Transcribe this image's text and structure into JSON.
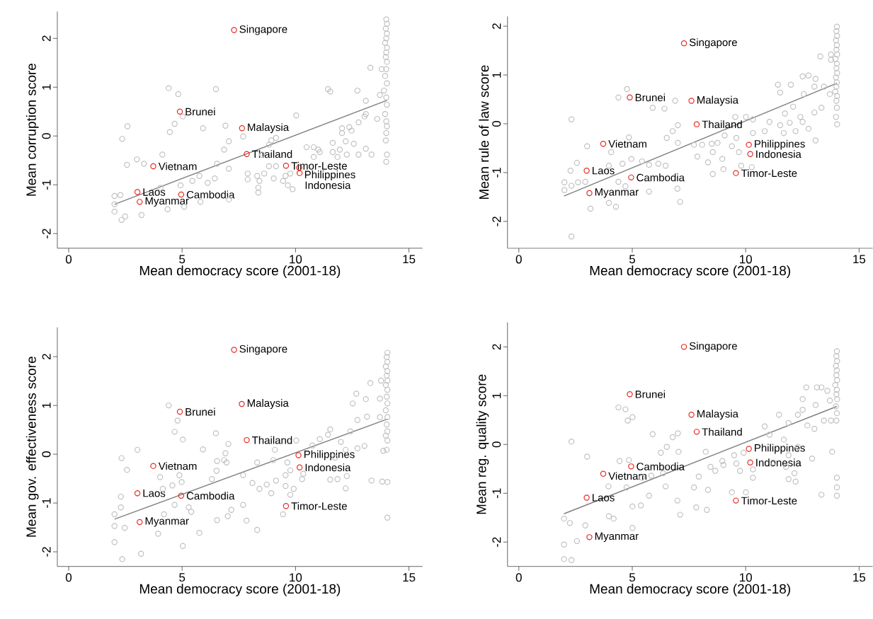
{
  "chart_data": [
    {
      "type": "scatter",
      "xlabel": "Mean democracy score (2001-18)",
      "ylabel": "Mean corruption score",
      "xlim": [
        -0.5,
        15.6
      ],
      "ylim": [
        -2.3,
        2.55
      ],
      "xticks": [
        0,
        5,
        10,
        15
      ],
      "yticks": [
        -2,
        -1,
        0,
        1,
        2
      ],
      "marker": "circle",
      "series": [
        {
          "type": "scatter",
          "color": "#c0c0c0",
          "x": [
            14.0,
            14.03,
            13.98,
            14.03,
            14.0,
            13.95,
            14.03,
            14.0,
            13.98,
            14.03,
            14.0,
            13.95,
            14.03,
            13.9,
            14.0,
            14.03,
            13.95,
            14.0,
            14.03,
            14.0,
            13.98,
            14.03,
            14.0,
            13.3,
            13.8,
            13.72,
            13.1,
            13.6,
            12.73,
            11.43,
            11.53,
            13.1,
            13.04,
            12.78,
            12.37,
            12.05,
            12.47,
            12.05,
            11.64,
            12.21,
            12.57,
            11.95,
            12.78,
            13.1,
            13.35,
            11.85,
            11.64,
            11.0,
            10.8,
            10.49,
            10.8,
            10.03,
            11.07,
            12.26,
            8.93,
            9.14,
            8.83,
            8.52,
            8.83,
            9.14,
            8.62,
            8.31,
            7.89,
            8.41,
            9.04,
            9.45,
            9.66,
            9.87,
            8.36,
            8.36,
            7.89,
            9.56,
            9.77,
            7.69,
            7.06,
            6.85,
            7.06,
            6.49,
            5.92,
            6.91,
            4.41,
            4.83,
            4.67,
            4.46,
            5.03,
            2.59,
            2.36,
            4.13,
            3.01,
            2.57,
            3.32,
            6.54,
            6.44,
            6.13,
            5.45,
            5.76,
            4.93,
            4.05,
            4.36,
            5.09,
            5.81,
            7.06,
            2.02,
            2.02,
            2.02,
            2.28,
            2.49,
            2.33,
            3.21
          ],
          "values": [
            2.39,
            2.3,
            2.2,
            2.1,
            2.0,
            1.91,
            1.81,
            1.71,
            1.62,
            1.52,
            1.37,
            1.23,
            1.08,
            0.93,
            0.79,
            0.64,
            0.45,
            0.3,
            0.2,
            0.06,
            -0.09,
            -0.38,
            -0.53,
            1.4,
            1.37,
            0.84,
            0.72,
            0.35,
            0.93,
            0.96,
            0.91,
            0.45,
            0.4,
            0.28,
            0.18,
            0.16,
            0.11,
            0.06,
            -0.14,
            -0.11,
            -0.16,
            -0.28,
            -0.38,
            -0.26,
            -0.38,
            -0.43,
            -0.33,
            -0.28,
            -0.43,
            -0.23,
            -0.23,
            0.42,
            -0.33,
            -0.38,
            -0.09,
            -0.04,
            -0.18,
            -0.38,
            -0.62,
            -0.62,
            -0.77,
            -0.82,
            -0.77,
            -0.92,
            -0.87,
            -0.92,
            -1.01,
            -1.09,
            -1.06,
            -1.16,
            -0.89,
            -0.82,
            -0.77,
            -0.01,
            -0.11,
            -0.28,
            -0.67,
            0.96,
            0.16,
            0.21,
            0.98,
            0.86,
            0.25,
            0.08,
            0.4,
            0.2,
            -0.06,
            -0.38,
            -0.48,
            -0.59,
            -0.57,
            -0.57,
            -0.87,
            -0.96,
            -0.92,
            -0.82,
            -1.01,
            -1.06,
            -1.5,
            -1.45,
            -1.35,
            -1.3,
            -1.23,
            -1.4,
            -1.55,
            -1.21,
            -1.65,
            -1.72,
            -1.62
          ]
        },
        {
          "type": "line",
          "marker": "none",
          "color": "#7f7f7f",
          "x": [
            2.02,
            14.03
          ],
          "values": [
            -1.4,
            0.73
          ]
        },
        {
          "type": "scatter",
          "color": "#e8281e",
          "x": [
            7.29,
            4.9,
            7.64,
            7.85,
            3.73,
            3.03,
            4.96,
            3.13,
            9.58,
            10.16,
            10.18
          ],
          "values": [
            2.17,
            0.5,
            0.16,
            -0.37,
            -0.62,
            -1.15,
            -1.2,
            -1.35,
            -0.61,
            -0.65,
            -0.76
          ]
        }
      ],
      "annotations": [
        {
          "text": "Singapore",
          "x": 7.29,
          "y": 2.17
        },
        {
          "text": "Brunei",
          "x": 4.9,
          "y": 0.5
        },
        {
          "text": "Malaysia",
          "x": 7.64,
          "y": 0.16
        },
        {
          "text": "Thailand",
          "x": 7.85,
          "y": -0.37
        },
        {
          "text": "Vietnam",
          "x": 3.73,
          "y": -0.62
        },
        {
          "text": "Laos",
          "x": 3.03,
          "y": -1.15
        },
        {
          "text": "Cambodia",
          "x": 4.96,
          "y": -1.2
        },
        {
          "text": "Myanmar",
          "x": 3.13,
          "y": -1.35
        },
        {
          "text": "Timor-Leste",
          "x": 9.58,
          "y": -0.61
        },
        {
          "text": "Philippines",
          "x": 10.16,
          "y": -0.65
        },
        {
          "text": "Indonesia",
          "x": 10.18,
          "y": -0.76
        }
      ]
    },
    {
      "type": "scatter",
      "xlabel": "Mean democracy score (2001-18)",
      "ylabel": "Mean rule of law score",
      "xlim": [
        -0.5,
        15.6
      ],
      "ylim": [
        -2.55,
        2.2
      ],
      "xticks": [
        0,
        5,
        10,
        15
      ],
      "yticks": [
        -2,
        -1,
        0,
        1,
        2
      ],
      "marker": "circle",
      "series": [
        {
          "type": "scatter",
          "color": "#c0c0c0",
          "x": [
            14.02,
            14.0,
            14.03,
            13.98,
            14.02,
            14.0,
            14.03,
            13.95,
            14.02,
            14.0,
            14.03,
            13.98,
            14.02,
            14.0,
            13.95,
            14.03,
            14.0,
            14.02,
            13.98,
            14.03,
            13.29,
            13.76,
            13.76,
            12.51,
            12.77,
            13.08,
            11.99,
            11.42,
            11.52,
            12.56,
            13.03,
            13.45,
            13.71,
            13.34,
            13.03,
            12.09,
            11.73,
            12.41,
            12.51,
            11.94,
            11.52,
            11.05,
            12.2,
            11.68,
            12.77,
            10.84,
            10.32,
            10.01,
            9.54,
            10.32,
            13.08,
            9.59,
            9.07,
            8.76,
            8.5,
            8.08,
            8.55,
            8.97,
            8.34,
            8.55,
            9.02,
            9.8,
            10.27,
            9.7,
            9.39,
            7.87,
            7.72,
            7.01,
            7.01,
            6.78,
            6.52,
            6.47,
            6.15,
            5.74,
            5.43,
            5.9,
            6.42,
            4.39,
            4.77,
            6.89,
            4.85,
            4.07,
            4.57,
            3.97,
            4.96,
            3.01,
            2.32,
            2.56,
            2.28,
            2.01,
            2.01,
            2.32,
            2.93,
            2.61,
            4.39,
            4.7,
            5.74,
            6.99,
            7.11,
            3.97,
            4.28,
            3.16,
            2.32
          ],
          "values": [
            1.99,
            1.9,
            1.8,
            1.71,
            1.61,
            1.52,
            1.42,
            1.33,
            1.23,
            1.14,
            1.04,
            0.95,
            0.85,
            0.76,
            0.66,
            0.57,
            0.47,
            0.33,
            0.14,
            -0.01,
            1.38,
            1.31,
            1.42,
            0.97,
            0.99,
            0.92,
            0.8,
            0.8,
            0.64,
            0.61,
            0.76,
            0.76,
            0.61,
            0.33,
            0.23,
            0.35,
            0.21,
            0.14,
            0.04,
            0.02,
            -0.03,
            0.04,
            -0.15,
            -0.19,
            -0.1,
            -0.15,
            0.09,
            0.14,
            0.14,
            -0.19,
            -0.34,
            -0.29,
            -0.24,
            -0.39,
            -0.41,
            -0.43,
            -0.58,
            -0.72,
            -0.79,
            -1.03,
            -0.93,
            -0.86,
            -0.89,
            -0.58,
            -0.46,
            -0.67,
            -0.43,
            -0.39,
            -0.03,
            -0.15,
            -0.29,
            -0.86,
            -0.82,
            -0.84,
            -0.77,
            0.33,
            0.31,
            0.54,
            0.71,
            0.47,
            -0.28,
            -0.58,
            -0.82,
            -0.86,
            -0.72,
            -0.46,
            0.09,
            -0.8,
            -0.96,
            -1.2,
            -1.36,
            -1.27,
            -1.19,
            -1.2,
            -1.19,
            -1.28,
            -1.39,
            -1.33,
            -1.6,
            -1.62,
            -1.7,
            -1.74,
            -2.31
          ]
        },
        {
          "type": "line",
          "marker": "none",
          "color": "#7f7f7f",
          "x": [
            1.99,
            14.02
          ],
          "values": [
            -1.48,
            0.83
          ]
        },
        {
          "type": "scatter",
          "color": "#e8281e",
          "x": [
            7.28,
            4.89,
            7.61,
            7.84,
            3.72,
            2.99,
            4.95,
            3.11,
            10.14,
            10.2,
            9.57
          ],
          "values": [
            1.65,
            0.54,
            0.47,
            -0.01,
            -0.41,
            -0.96,
            -1.1,
            -1.42,
            -0.43,
            -0.62,
            -1.01
          ]
        }
      ],
      "annotations": [
        {
          "text": "Singapore",
          "x": 7.28,
          "y": 1.65
        },
        {
          "text": "Brunei",
          "x": 4.89,
          "y": 0.54
        },
        {
          "text": "Malaysia",
          "x": 7.61,
          "y": 0.47
        },
        {
          "text": "Thailand",
          "x": 7.84,
          "y": -0.01
        },
        {
          "text": "Vietnam",
          "x": 3.72,
          "y": -0.41
        },
        {
          "text": "Laos",
          "x": 2.99,
          "y": -0.96
        },
        {
          "text": "Cambodia",
          "x": 4.95,
          "y": -1.1
        },
        {
          "text": "Myanmar",
          "x": 3.11,
          "y": -1.42
        },
        {
          "text": "Philippines",
          "x": 10.14,
          "y": -0.43
        },
        {
          "text": "Indonesia",
          "x": 10.2,
          "y": -0.62
        },
        {
          "text": "Timor-Leste",
          "x": 9.57,
          "y": -1.01
        }
      ]
    },
    {
      "type": "scatter",
      "xlabel": "Mean democracy score (2001-18)",
      "ylabel": "Mean gov. effectiveness score",
      "xlim": [
        -0.5,
        15.6
      ],
      "ylim": [
        -2.3,
        2.6
      ],
      "xticks": [
        0,
        5,
        10,
        15
      ],
      "yticks": [
        -2,
        -1,
        0,
        1,
        2
      ],
      "marker": "circle",
      "series": [
        {
          "type": "scatter",
          "color": "#c0c0c0",
          "x": [
            14.05,
            14.02,
            14.05,
            13.98,
            14.05,
            14.02,
            14.05,
            13.98,
            14.05,
            14.02,
            14.05,
            13.98,
            14.05,
            14.02,
            14.05,
            13.98,
            14.05,
            14.02,
            14.05,
            14.05,
            13.3,
            13.77,
            12.68,
            13.1,
            12.52,
            13.72,
            13.72,
            13.15,
            12.73,
            12.42,
            11.53,
            12.0,
            11.43,
            11.07,
            10.75,
            13.04,
            12.73,
            13.87,
            12.21,
            11.74,
            12.26,
            11.85,
            11.53,
            12.21,
            13.35,
            13.82,
            10.29,
            10.34,
            9.56,
            9.77,
            9.64,
            9.02,
            9.09,
            10.03,
            8.31,
            7.69,
            8.1,
            8.41,
            8.73,
            8.93,
            9.14,
            9.56,
            9.92,
            9.77,
            9.45,
            8.31,
            7.84,
            7.17,
            7.01,
            6.54,
            7.69,
            6.96,
            6.85,
            6.54,
            6.52,
            6.31,
            5.92,
            6.91,
            7.04,
            6.49,
            4.41,
            4.8,
            4.67,
            5.03,
            3.03,
            2.33,
            2.57,
            4.03,
            4.88,
            4.98,
            4.57,
            4.15,
            2.3,
            2.3,
            2.02,
            2.02,
            2.47,
            3.94,
            4.2,
            4.67,
            5.4,
            5.29,
            5.76,
            5.03,
            2.02,
            3.19,
            2.36
          ],
          "values": [
            2.08,
            1.99,
            1.89,
            1.8,
            1.7,
            1.61,
            1.51,
            1.42,
            1.32,
            1.18,
            1.04,
            0.9,
            0.76,
            0.61,
            0.47,
            0.38,
            0.28,
            0.09,
            -0.57,
            -1.3,
            1.46,
            1.51,
            1.24,
            1.13,
            1.04,
            1.14,
            0.76,
            0.77,
            0.7,
            0.47,
            0.51,
            0.25,
            0.4,
            0.31,
            0.18,
            0.17,
            0.12,
            0.07,
            0.09,
            -0.07,
            -0.45,
            -0.51,
            -0.52,
            -0.7,
            -0.54,
            -0.56,
            -0.51,
            -0.4,
            -0.43,
            -0.33,
            -0.17,
            -0.12,
            0.09,
            0.28,
            -0.17,
            -0.43,
            -0.59,
            -0.71,
            -0.62,
            -0.8,
            -0.54,
            -0.65,
            -0.71,
            -0.83,
            -1.23,
            -1.55,
            -1.36,
            -1.14,
            -1.27,
            -1.35,
            -1.04,
            -0.17,
            -0.12,
            -0.14,
            -0.34,
            -0.51,
            0.1,
            0.02,
            0.21,
            0.43,
            1.0,
            0.69,
            0.46,
            0.3,
            0.09,
            -0.08,
            -0.32,
            -0.47,
            -0.43,
            -0.57,
            -0.64,
            -0.71,
            -0.87,
            -1.09,
            -1.23,
            -1.47,
            -1.51,
            -1.63,
            -1.23,
            -1.04,
            -1.18,
            -1.09,
            -1.61,
            -1.88,
            -1.8,
            -2.04,
            -2.15
          ]
        },
        {
          "type": "line",
          "marker": "none",
          "color": "#7f7f7f",
          "x": [
            2.02,
            14.05
          ],
          "values": [
            -1.33,
            0.72
          ]
        },
        {
          "type": "scatter",
          "color": "#e8281e",
          "x": [
            7.29,
            7.63,
            4.9,
            7.85,
            10.13,
            10.18,
            3.73,
            3.03,
            4.96,
            9.58,
            3.13
          ],
          "values": [
            2.14,
            1.03,
            0.87,
            0.29,
            -0.02,
            -0.27,
            -0.24,
            -0.8,
            -0.85,
            -1.06,
            -1.39
          ]
        }
      ],
      "annotations": [
        {
          "text": "Singapore",
          "x": 7.29,
          "y": 2.14
        },
        {
          "text": "Malaysia",
          "x": 7.63,
          "y": 1.03
        },
        {
          "text": "Brunei",
          "x": 4.9,
          "y": 0.87
        },
        {
          "text": "Thailand",
          "x": 7.85,
          "y": 0.29
        },
        {
          "text": "Philippines",
          "x": 10.13,
          "y": -0.02
        },
        {
          "text": "Indonesia",
          "x": 10.18,
          "y": -0.27
        },
        {
          "text": "Vietnam",
          "x": 3.73,
          "y": -0.24
        },
        {
          "text": "Laos",
          "x": 3.03,
          "y": -0.8
        },
        {
          "text": "Cambodia",
          "x": 4.96,
          "y": -0.85
        },
        {
          "text": "Timor-Leste",
          "x": 9.58,
          "y": -1.06
        },
        {
          "text": "Myanmar",
          "x": 3.13,
          "y": -1.39
        }
      ]
    },
    {
      "type": "scatter",
      "xlabel": "Mean democracy score (2001-18)",
      "ylabel": "Mean reg. quality score",
      "xlim": [
        -0.5,
        15.6
      ],
      "ylim": [
        -2.5,
        2.5
      ],
      "xticks": [
        0,
        5,
        10,
        15
      ],
      "yticks": [
        -2,
        -1,
        0,
        1,
        2
      ],
      "marker": "circle",
      "series": [
        {
          "type": "scatter",
          "color": "#c0c0c0",
          "x": [
            14.02,
            14.0,
            14.03,
            13.98,
            14.02,
            14.0,
            14.03,
            13.95,
            14.02,
            14.0,
            14.03,
            13.98,
            14.02,
            14.0,
            14.02,
            14.02,
            14.02,
            13.81,
            12.67,
            13.14,
            13.34,
            12.51,
            13.08,
            13.71,
            13.6,
            12.3,
            12.51,
            11.47,
            11.89,
            12.72,
            13.03,
            13.45,
            13.76,
            10.84,
            11.05,
            11.68,
            12.3,
            11.89,
            12.93,
            11.21,
            11.78,
            12.15,
            11.89,
            12.2,
            13.34,
            10.32,
            10.32,
            9.75,
            9.59,
            9.02,
            8.66,
            8.45,
            8.24,
            8.97,
            9.49,
            9.91,
            10.01,
            9.39,
            8.34,
            7.72,
            6.99,
            7.82,
            8.29,
            7.11,
            7.93,
            6.36,
            6.47,
            5.84,
            6.26,
            6.52,
            7.04,
            6.78,
            7.01,
            5.9,
            4.44,
            4.85,
            5.43,
            5.74,
            5.38,
            5.01,
            5.01,
            4.39,
            4.7,
            4.8,
            5.01,
            2.32,
            3.01,
            3.95,
            4.75,
            3.97,
            4.18,
            2.93,
            1.99,
            2.25,
            1.99,
            2.56,
            1.99,
            2.32
          ],
          "values": [
            1.91,
            1.81,
            1.71,
            1.61,
            1.52,
            1.42,
            1.32,
            1.22,
            1.12,
            1.03,
            0.93,
            0.78,
            0.64,
            0.49,
            -0.68,
            -0.88,
            -1.05,
            -0.15,
            1.17,
            1.17,
            1.17,
            0.93,
            0.81,
            0.9,
            1.1,
            0.61,
            0.71,
            0.61,
            0.44,
            0.39,
            0.32,
            0.49,
            0.49,
            0.37,
            0.2,
            0.1,
            -0.05,
            -0.22,
            -0.29,
            -0.37,
            -0.46,
            -0.59,
            -0.71,
            -0.76,
            -1.03,
            -0.51,
            -0.68,
            -0.54,
            -0.39,
            -0.42,
            -0.54,
            -0.46,
            -0.15,
            -0.34,
            -0.22,
            -0.17,
            -0.98,
            -0.98,
            -0.93,
            -0.88,
            -1.15,
            -1.29,
            -1.34,
            -1.44,
            -0.66,
            -0.59,
            -0.86,
            -0.64,
            -0.17,
            -0.05,
            -0.15,
            0.15,
            0.23,
            0.21,
            -0.34,
            -0.32,
            -0.68,
            -1.05,
            -1.25,
            -1.27,
            -1.71,
            0.76,
            0.72,
            0.49,
            0.56,
            0.06,
            -0.25,
            -0.86,
            -0.88,
            -1.47,
            -1.52,
            -1.66,
            -1.52,
            -1.61,
            -2.05,
            -1.98,
            -2.35,
            -2.37
          ]
        },
        {
          "type": "line",
          "marker": "none",
          "color": "#7f7f7f",
          "x": [
            1.99,
            14.02
          ],
          "values": [
            -1.42,
            0.78
          ]
        },
        {
          "type": "scatter",
          "color": "#e8281e",
          "x": [
            7.28,
            4.89,
            7.61,
            7.84,
            10.14,
            10.2,
            4.95,
            3.72,
            2.99,
            9.57,
            3.11
          ],
          "values": [
            2.0,
            1.03,
            0.61,
            0.26,
            -0.09,
            -0.37,
            -0.45,
            -0.6,
            -1.09,
            -1.15,
            -1.9
          ]
        }
      ],
      "annotations": [
        {
          "text": "Singapore",
          "x": 7.28,
          "y": 2.0
        },
        {
          "text": "Brunei",
          "x": 4.89,
          "y": 1.03
        },
        {
          "text": "Malaysia",
          "x": 7.61,
          "y": 0.61
        },
        {
          "text": "Thailand",
          "x": 7.84,
          "y": 0.26
        },
        {
          "text": "Philippines",
          "x": 10.14,
          "y": -0.09
        },
        {
          "text": "Indonesia",
          "x": 10.2,
          "y": -0.37
        },
        {
          "text": "Cambodia",
          "x": 4.95,
          "y": -0.45
        },
        {
          "text": "Vietnam",
          "x": 3.72,
          "y": -0.6
        },
        {
          "text": "Laos",
          "x": 2.99,
          "y": -1.09
        },
        {
          "text": "Timor-Leste",
          "x": 9.57,
          "y": -1.15
        },
        {
          "text": "Myanmar",
          "x": 3.11,
          "y": -1.9
        }
      ]
    }
  ]
}
